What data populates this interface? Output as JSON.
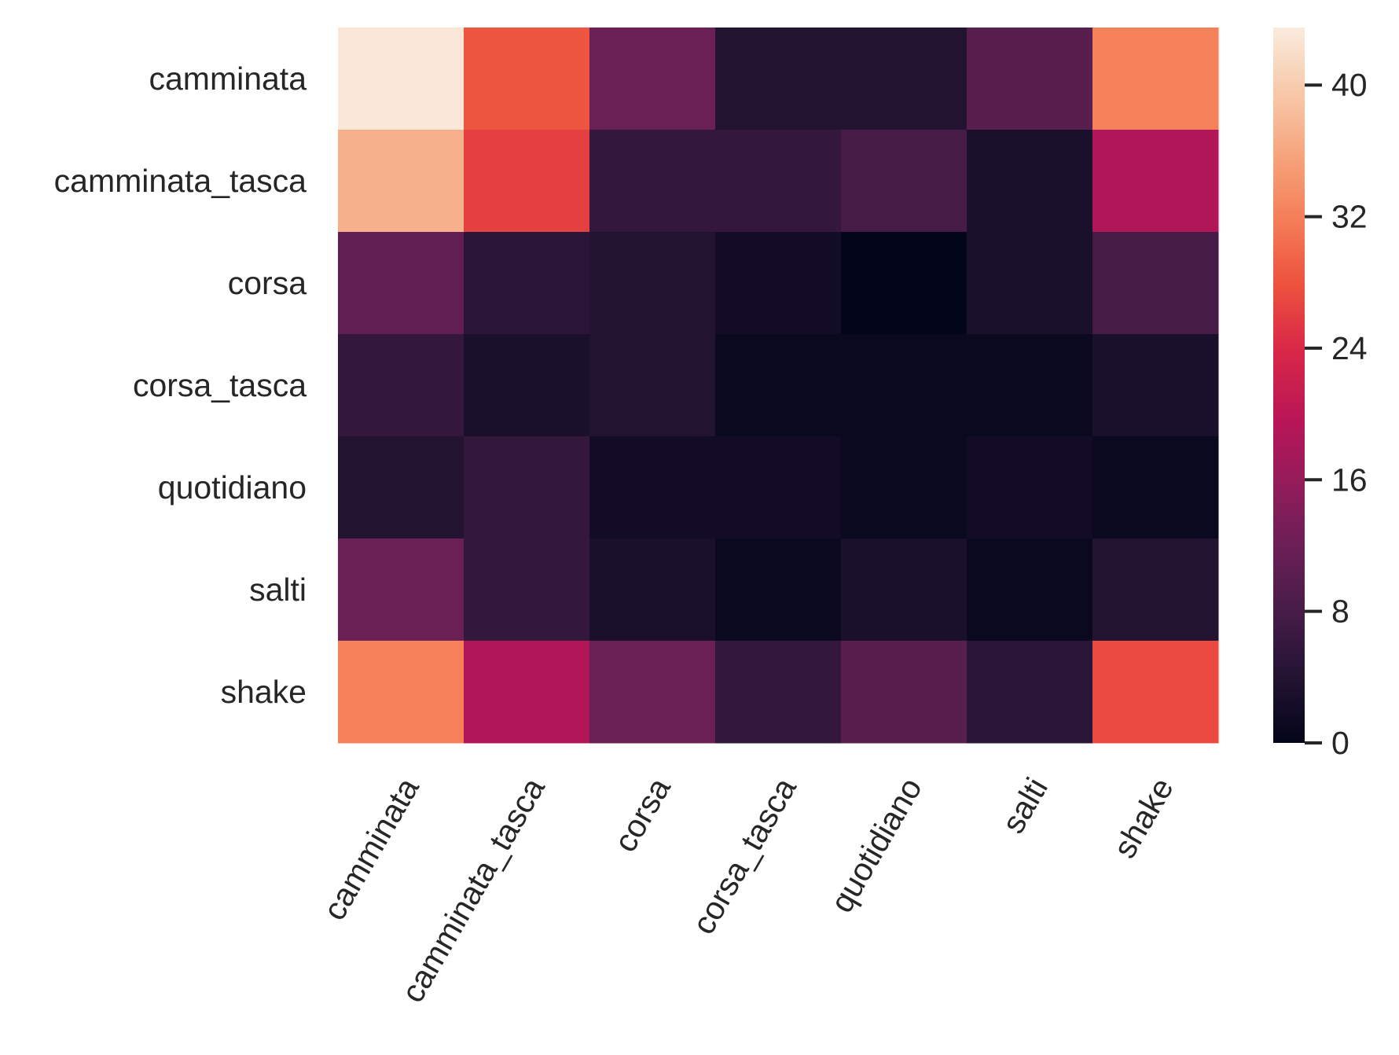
{
  "chart_data": {
    "type": "heatmap",
    "title": "",
    "xlabel": "",
    "ylabel": "",
    "x_categories": [
      "camminata",
      "camminata_tasca",
      "corsa",
      "corsa_tasca",
      "quotidiano",
      "salti",
      "shake"
    ],
    "y_categories": [
      "camminata",
      "camminata_tasca",
      "corsa",
      "corsa_tasca",
      "quotidiano",
      "salti",
      "shake"
    ],
    "values": [
      [
        43,
        28,
        12,
        4,
        4,
        10,
        32
      ],
      [
        37,
        26,
        6,
        6,
        8,
        3,
        19
      ],
      [
        11,
        5,
        4,
        2,
        0,
        3,
        8
      ],
      [
        6,
        3,
        4,
        1,
        1,
        1,
        3
      ],
      [
        4,
        6,
        2,
        2,
        1,
        2,
        1
      ],
      [
        12,
        6,
        3,
        1,
        3,
        1,
        4
      ],
      [
        32,
        19,
        12,
        6,
        10,
        5,
        27
      ]
    ],
    "colorbar": {
      "min": 0,
      "max": 43.5,
      "ticks": [
        0,
        8,
        16,
        24,
        32,
        40
      ],
      "colormap": "rocket",
      "colors": [
        "#03051a",
        "#221331",
        "#451c47",
        "#691f55",
        "#921c5b",
        "#b91657",
        "#d92847",
        "#ed513e",
        "#f47d57",
        "#f6a47c",
        "#f7c9aa",
        "#faebdd"
      ]
    },
    "grid": false,
    "legend": "colorbar-right"
  }
}
